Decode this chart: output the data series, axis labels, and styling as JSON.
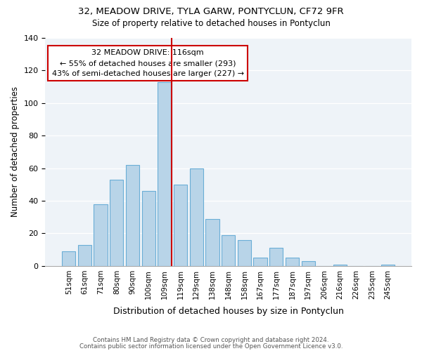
{
  "title1": "32, MEADOW DRIVE, TYLA GARW, PONTYCLUN, CF72 9FR",
  "title2": "Size of property relative to detached houses in Pontyclun",
  "xlabel": "Distribution of detached houses by size in Pontyclun",
  "ylabel": "Number of detached properties",
  "bar_labels": [
    "51sqm",
    "61sqm",
    "71sqm",
    "80sqm",
    "90sqm",
    "100sqm",
    "109sqm",
    "119sqm",
    "129sqm",
    "138sqm",
    "148sqm",
    "158sqm",
    "167sqm",
    "177sqm",
    "187sqm",
    "197sqm",
    "206sqm",
    "216sqm",
    "226sqm",
    "235sqm",
    "245sqm"
  ],
  "bar_heights": [
    9,
    13,
    38,
    53,
    62,
    46,
    113,
    50,
    60,
    29,
    19,
    16,
    5,
    11,
    5,
    3,
    0,
    1,
    0,
    0,
    1
  ],
  "bar_color": "#b8d4e8",
  "bar_edge_color": "#6aaed6",
  "bar_edge_width": 0.8,
  "vline_color": "#cc0000",
  "vline_index": 6,
  "annotation_title": "32 MEADOW DRIVE: 116sqm",
  "annotation_line1": "← 55% of detached houses are smaller (293)",
  "annotation_line2": "43% of semi-detached houses are larger (227) →",
  "annotation_box_color": "#ffffff",
  "annotation_box_edge": "#cc0000",
  "ylim": [
    0,
    140
  ],
  "yticks": [
    0,
    20,
    40,
    60,
    80,
    100,
    120,
    140
  ],
  "footer1": "Contains HM Land Registry data © Crown copyright and database right 2024.",
  "footer2": "Contains public sector information licensed under the Open Government Licence v3.0."
}
